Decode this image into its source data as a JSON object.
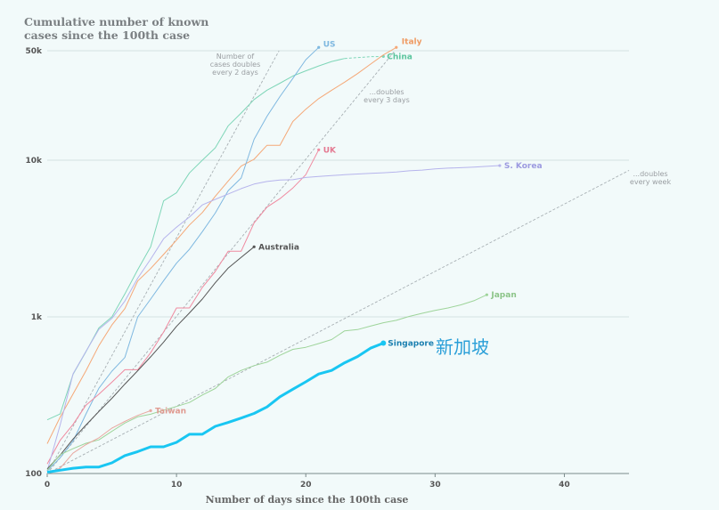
{
  "chart_title": "Cumulative number of known\ncases since the 100th case",
  "annotation": "新加坡",
  "chart_data": {
    "type": "line",
    "title": "Cumulative number of known cases since the 100th case",
    "xlabel": "Number of days since the 100th case",
    "ylabel": "",
    "y_scale": "log",
    "xlim": [
      0,
      45
    ],
    "ylim": [
      100,
      50000
    ],
    "x_ticks": [
      0,
      10,
      20,
      30,
      40
    ],
    "x_tick_labels": [
      "0",
      "10",
      "20",
      "30",
      "40"
    ],
    "y_ticks": [
      100,
      1000,
      10000,
      50000
    ],
    "y_tick_labels": [
      "100",
      "1k",
      "10k",
      "50k"
    ],
    "grid": true,
    "reference_lines": [
      {
        "label": "Number of cases doubles every 2 days",
        "label_lines": [
          "Number of",
          "cases doubles",
          "every 2 days"
        ],
        "doubling_days": 2
      },
      {
        "label": "...doubles every 3 days",
        "label_lines": [
          "...doubles",
          "every 3 days"
        ],
        "doubling_days": 3
      },
      {
        "label": "...doubles every week",
        "label_lines": [
          "...doubles",
          "every week"
        ],
        "doubling_days": 7
      }
    ],
    "series": [
      {
        "name": "China",
        "color": "#7fd6b8",
        "width": 1,
        "dashed_tail": true,
        "x": [
          0,
          1,
          2,
          3,
          4,
          5,
          6,
          7,
          8,
          9,
          10,
          11,
          12,
          13,
          14,
          15,
          16,
          17,
          18,
          19,
          20,
          21,
          22,
          23,
          24,
          25,
          26
        ],
        "y": [
          220,
          240,
          430,
          600,
          850,
          1000,
          1400,
          2000,
          2800,
          5500,
          6200,
          8300,
          10000,
          12000,
          16600,
          20000,
          24400,
          28000,
          31000,
          34500,
          37200,
          40000,
          42700,
          44600,
          45200,
          45800,
          46000
        ]
      },
      {
        "name": "Italy",
        "color": "#f5a877",
        "width": 1,
        "x": [
          0,
          1,
          2,
          3,
          4,
          5,
          6,
          7,
          8,
          9,
          10,
          11,
          12,
          13,
          14,
          15,
          16,
          17,
          18,
          19,
          20,
          21,
          22,
          23,
          24,
          25,
          26,
          27
        ],
        "y": [
          155,
          229,
          322,
          453,
          655,
          888,
          1128,
          1694,
          2036,
          2502,
          3089,
          3858,
          4636,
          5883,
          7375,
          9172,
          10149,
          12462,
          12462,
          17660,
          21157,
          24747,
          27980,
          31506,
          35713,
          41035,
          47021,
          53578
        ]
      },
      {
        "name": "US",
        "color": "#7fb8e0",
        "width": 1,
        "x": [
          0,
          1,
          2,
          3,
          4,
          5,
          6,
          7,
          8,
          9,
          10,
          11,
          12,
          13,
          14,
          15,
          16,
          17,
          18,
          19,
          20,
          21
        ],
        "y": [
          104,
          126,
          161,
          240,
          350,
          450,
          550,
          1000,
          1300,
          1700,
          2200,
          2700,
          3500,
          4600,
          6400,
          7700,
          13600,
          19100,
          25500,
          33300,
          43800,
          53700
        ]
      },
      {
        "name": "UK",
        "color": "#f08aa0",
        "width": 1,
        "x": [
          0,
          1,
          2,
          3,
          4,
          5,
          6,
          7,
          8,
          9,
          10,
          11,
          12,
          13,
          14,
          15,
          16,
          17,
          18,
          19,
          20,
          21
        ],
        "y": [
          115,
          163,
          206,
          273,
          321,
          383,
          460,
          460,
          590,
          800,
          1140,
          1140,
          1543,
          1950,
          2626,
          2626,
          3983,
          5018,
          5683,
          6650,
          8077,
          11658
        ]
      },
      {
        "name": "S. Korea",
        "color": "#b6b4ec",
        "width": 1,
        "x": [
          0,
          1,
          2,
          3,
          4,
          5,
          6,
          7,
          8,
          9,
          10,
          11,
          12,
          13,
          14,
          15,
          16,
          17,
          18,
          19,
          20,
          21,
          22,
          23,
          24,
          25,
          26,
          27,
          28,
          29,
          30,
          31,
          32,
          33,
          34,
          35
        ],
        "y": [
          104,
          204,
          433,
          602,
          833,
          977,
          1261,
          1766,
          2337,
          3150,
          3736,
          4335,
          5186,
          5621,
          6088,
          6593,
          7041,
          7313,
          7478,
          7513,
          7755,
          7869,
          7979,
          8086,
          8162,
          8236,
          8320,
          8413,
          8565,
          8652,
          8799,
          8897,
          8961,
          9037,
          9137,
          9241
        ]
      },
      {
        "name": "Australia",
        "color": "#555555",
        "width": 1,
        "x": [
          0,
          1,
          2,
          3,
          4,
          5,
          6,
          7,
          8,
          9,
          10,
          11,
          12,
          13,
          14,
          15,
          16
        ],
        "y": [
          107,
          131,
          166,
          204,
          249,
          302,
          372,
          453,
          556,
          690,
          870,
          1060,
          1300,
          1650,
          2050,
          2400,
          2800
        ]
      },
      {
        "name": "Japan",
        "color": "#9ed49a",
        "width": 1,
        "x": [
          0,
          1,
          2,
          3,
          4,
          5,
          6,
          7,
          8,
          9,
          10,
          11,
          12,
          13,
          14,
          15,
          16,
          17,
          18,
          19,
          20,
          21,
          22,
          23,
          24,
          25,
          26,
          27,
          28,
          29,
          30,
          31,
          32,
          33,
          34
        ],
        "y": [
          105,
          132,
          144,
          156,
          164,
          186,
          210,
          230,
          239,
          254,
          268,
          284,
          317,
          349,
          414,
          455,
          488,
          514,
          568,
          620,
          639,
          675,
          716,
          814,
          829,
          873,
          917,
          950,
          1007,
          1054,
          1101,
          1140,
          1193,
          1268,
          1384
        ]
      },
      {
        "name": "Taiwan",
        "color": "#e8a8a0",
        "width": 1,
        "x": [
          0,
          1,
          2,
          3,
          4,
          5,
          6,
          7,
          8
        ],
        "y": [
          100,
          108,
          135,
          153,
          169,
          195,
          215,
          235,
          252
        ]
      },
      {
        "name": "Singapore",
        "color": "#19c6f2",
        "width": 3,
        "x": [
          0,
          1,
          2,
          3,
          4,
          5,
          6,
          7,
          8,
          9,
          10,
          11,
          12,
          13,
          14,
          15,
          16,
          17,
          18,
          19,
          20,
          21,
          22,
          23,
          24,
          25,
          26
        ],
        "y": [
          102,
          105,
          108,
          110,
          110,
          117,
          130,
          138,
          148,
          148,
          158,
          178,
          178,
          200,
          212,
          226,
          242,
          266,
          309,
          345,
          385,
          432,
          455,
          509,
          558,
          631,
          680
        ]
      }
    ]
  }
}
